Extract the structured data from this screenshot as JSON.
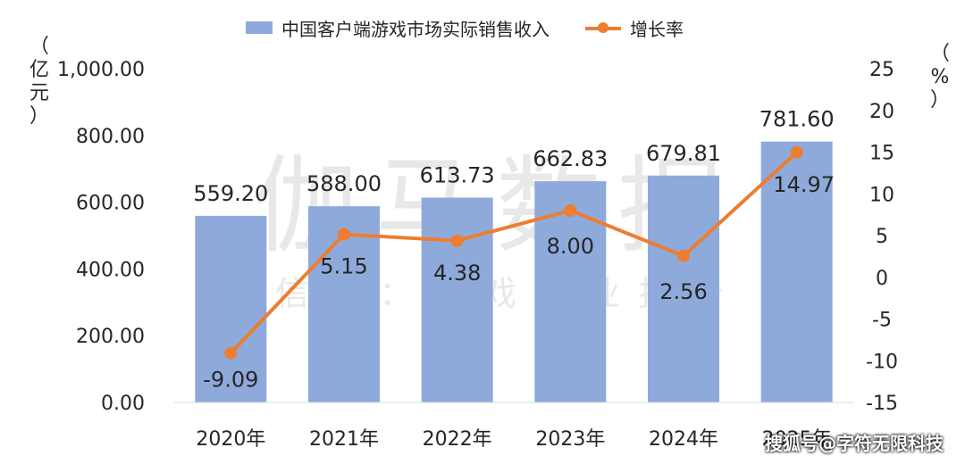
{
  "legend": {
    "bar_label": "中国客户端游戏市场实际销售收入",
    "line_label": "增长率"
  },
  "left_unit": "（亿元）",
  "right_unit": "（%）",
  "watermark": {
    "big": "伽马数据",
    "small": "微信号：游戏产业报告"
  },
  "footer_mark": "搜狐号@字符无限科技",
  "colors": {
    "bar": "#8eaadb",
    "line": "#ed7d31"
  },
  "chart_data": {
    "type": "bar",
    "categories": [
      "2020年",
      "2021年",
      "2022年",
      "2023年",
      "2024年",
      "2025年"
    ],
    "series": [
      {
        "name": "中国客户端游戏市场实际销售收入",
        "type": "bar",
        "axis": "left",
        "values": [
          559.2,
          588.0,
          613.73,
          662.83,
          679.81,
          781.6
        ],
        "labels": [
          "559.20",
          "588.00",
          "613.73",
          "662.83",
          "679.81",
          "781.60"
        ]
      },
      {
        "name": "增长率",
        "type": "line",
        "axis": "right",
        "values": [
          -9.09,
          5.15,
          4.38,
          8.0,
          2.56,
          14.97
        ],
        "labels": [
          "-9.09",
          "5.15",
          "4.38",
          "8.00",
          "2.56",
          "14.97"
        ]
      }
    ],
    "left_axis": {
      "ticks": [
        "0.00",
        "200.00",
        "400.00",
        "600.00",
        "800.00",
        "1,000.00"
      ],
      "ylim": [
        0,
        1000
      ]
    },
    "right_axis": {
      "ticks": [
        "-15",
        "-10",
        "-5",
        "0",
        "5",
        "10",
        "15",
        "20",
        "25"
      ],
      "ylim": [
        -15,
        25
      ]
    },
    "grid": false
  }
}
